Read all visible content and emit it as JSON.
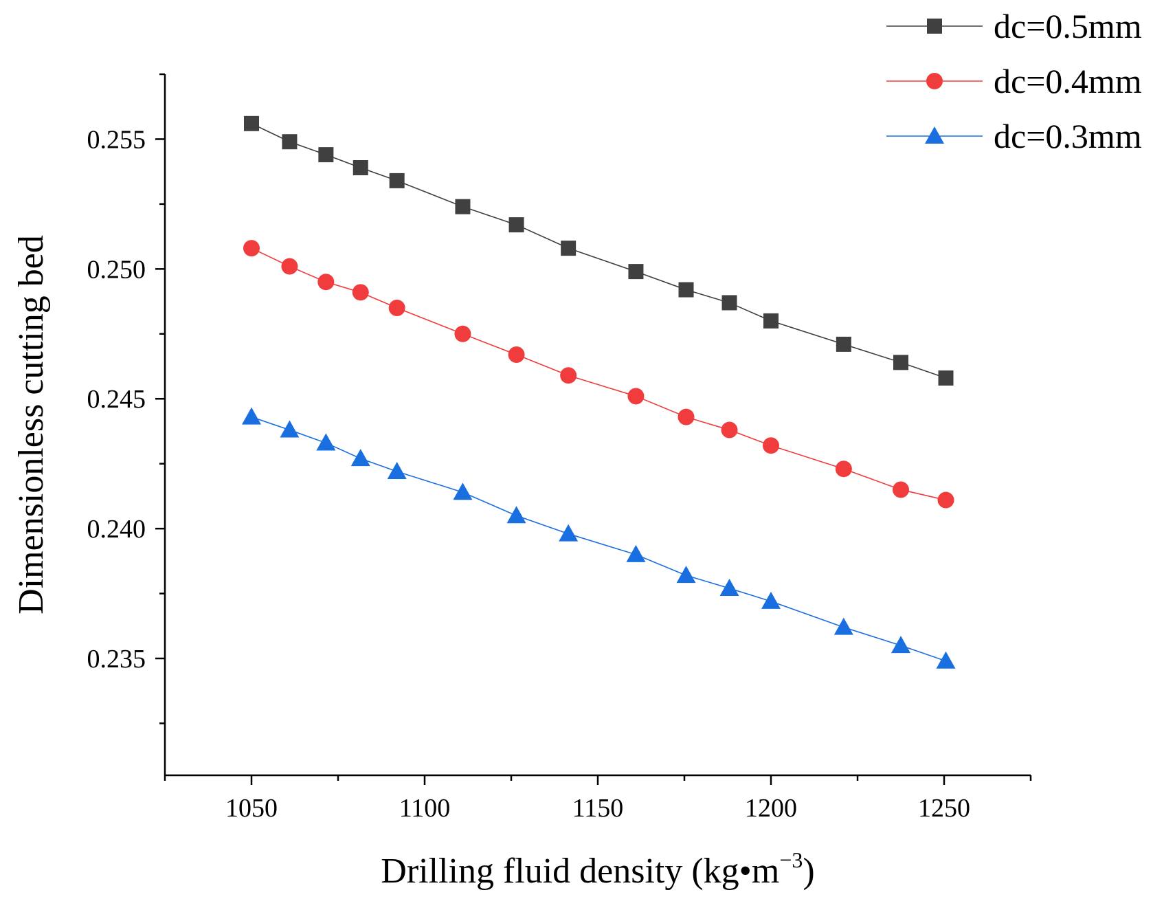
{
  "chart_data": {
    "type": "line",
    "title": "",
    "xlabel": "Drilling fluid density (kg•m",
    "xlabel_sup": "−3",
    "xlabel_close": ")",
    "ylabel": "Dimensionless cutting bed",
    "xlim": [
      1025,
      1275
    ],
    "ylim": [
      0.2305,
      0.2575
    ],
    "x_ticks": [
      1050,
      1100,
      1150,
      1200,
      1250
    ],
    "x_tick_labels": [
      "1050",
      "1100",
      "1150",
      "1200",
      "1250"
    ],
    "x_minor_ticks": [
      1025,
      1075,
      1125,
      1175,
      1225,
      1275
    ],
    "y_ticks": [
      0.235,
      0.24,
      0.245,
      0.25,
      0.255
    ],
    "y_tick_labels": [
      "0.235",
      "0.240",
      "0.245",
      "0.250",
      "0.255"
    ],
    "y_minor_ticks": [
      0.2325,
      0.2375,
      0.2425,
      0.2475,
      0.2525,
      0.2575
    ],
    "x": [
      1050,
      1061,
      1071.5,
      1081.5,
      1092,
      1111,
      1126.5,
      1141.5,
      1161,
      1175.5,
      1188,
      1200,
      1221,
      1237.5,
      1250.5
    ],
    "series": [
      {
        "name": "dc=0.5mm",
        "marker": "square",
        "color": "#404040",
        "values": [
          0.2556,
          0.2549,
          0.2544,
          0.2539,
          0.2534,
          0.2524,
          0.2517,
          0.2508,
          0.2499,
          0.2492,
          0.2487,
          0.248,
          0.2471,
          0.2464,
          0.2458
        ]
      },
      {
        "name": "dc=0.4mm",
        "marker": "circle",
        "color": "#f03c3c",
        "values": [
          0.2508,
          0.2501,
          0.2495,
          0.2491,
          0.2485,
          0.2475,
          0.2467,
          0.2459,
          0.2451,
          0.2443,
          0.2438,
          0.2432,
          0.2423,
          0.2415,
          0.2411
        ]
      },
      {
        "name": "dc=0.3mm",
        "marker": "triangle",
        "color": "#1a6fe0",
        "values": [
          0.2443,
          0.2438,
          0.2433,
          0.2427,
          0.2422,
          0.2414,
          0.2405,
          0.2398,
          0.239,
          0.2382,
          0.2377,
          0.2372,
          0.2362,
          0.2355,
          0.2349
        ]
      }
    ],
    "legend_position": "top-right",
    "grid": false
  }
}
